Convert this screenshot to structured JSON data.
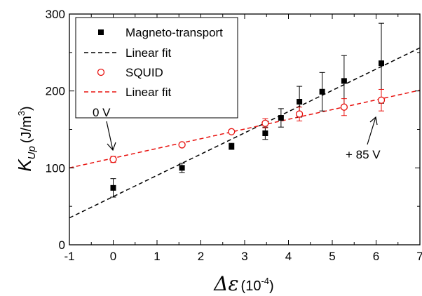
{
  "chart_data": {
    "type": "scatter",
    "xlim": [
      -1,
      7
    ],
    "ylim": [
      0,
      300
    ],
    "xticks": [
      -1,
      0,
      1,
      2,
      3,
      4,
      5,
      6,
      7
    ],
    "yticks": [
      0,
      100,
      200,
      300
    ],
    "xlabel": {
      "symbol": "Δε",
      "unit": "(10",
      "exp": "-4",
      "close": ")"
    },
    "ylabel": {
      "symbol": "K",
      "sub": "Up",
      "unit": "(J/m",
      "exp": "3",
      "close": ")"
    },
    "legend_position": "top-left",
    "series": [
      {
        "name": "Magneto-transport",
        "marker": "filled-square",
        "color": "#000000",
        "x": [
          0,
          1.57,
          2.7,
          3.47,
          3.83,
          4.25,
          4.77,
          5.27,
          6.12
        ],
        "y": [
          74,
          100,
          128,
          145,
          165,
          186,
          199,
          213,
          236
        ],
        "err": [
          12,
          6,
          4,
          8,
          12,
          20,
          25,
          33,
          52
        ]
      },
      {
        "name": "SQUID",
        "marker": "open-circle",
        "color": "#e8120f",
        "x": [
          0,
          1.57,
          2.7,
          3.47,
          4.25,
          5.27,
          6.12
        ],
        "y": [
          111,
          130,
          147,
          158,
          170,
          179,
          188
        ],
        "err": [
          4,
          2,
          2,
          6,
          9,
          11,
          14
        ]
      }
    ],
    "fits": [
      {
        "name": "Linear fit",
        "color": "#000000",
        "dash": "dashed",
        "x0": -1,
        "y0": 35,
        "x1": 7,
        "y1": 256
      },
      {
        "name": "Linear fit",
        "color": "#e8120f",
        "dash": "dashed",
        "x0": -1,
        "y0": 100,
        "x1": 7,
        "y1": 201
      }
    ],
    "legend": [
      {
        "label": "Magneto-transport",
        "kind": "filled-square"
      },
      {
        "label": "Linear fit",
        "kind": "black-dash"
      },
      {
        "label": "SQUID",
        "kind": "open-circle"
      },
      {
        "label": "Linear fit",
        "kind": "red-dash"
      }
    ],
    "annotations": [
      {
        "text": "0 V",
        "target_x": 0,
        "target_y": 117
      },
      {
        "text": "+ 85 V",
        "target_x": 6.12,
        "target_y": 181
      }
    ]
  }
}
